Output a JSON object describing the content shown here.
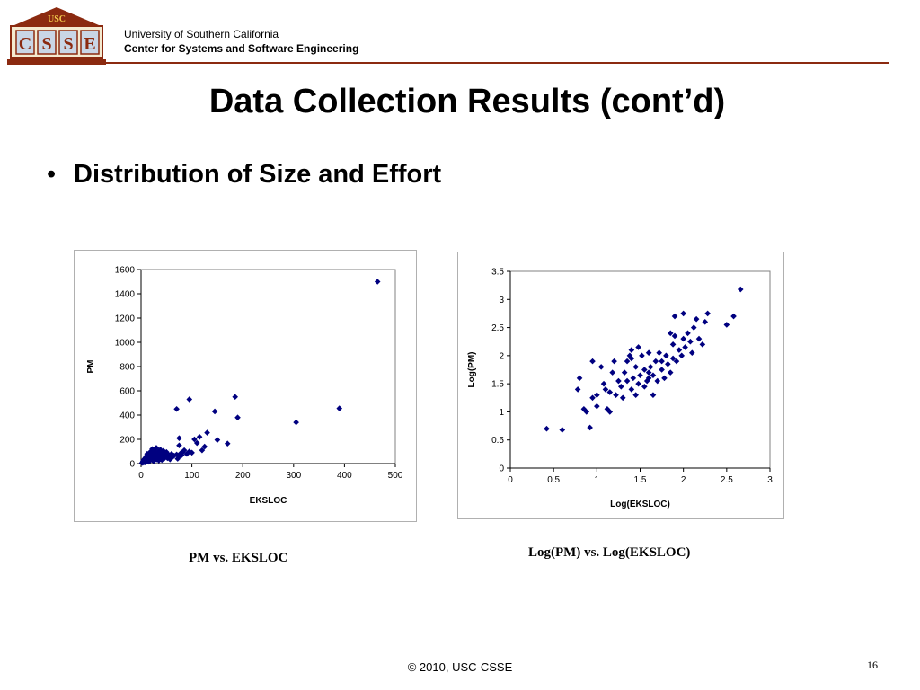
{
  "header": {
    "logo_top_text": "USC",
    "logo_letters": [
      "C",
      "S",
      "S",
      "E"
    ],
    "org_line1": "University of Southern California",
    "org_line2": "Center for Systems and Software Engineering",
    "rule_color": "#8b2a10"
  },
  "slide": {
    "title": "Data Collection Results (cont’d)",
    "bullet_marker": "•",
    "bullet_text": "Distribution of Size and Effort",
    "caption_left": "PM vs. EKSLOC",
    "caption_right": "Log(PM) vs. Log(EKSLOC)",
    "footer": "© 2010, USC-CSSE",
    "page_number": "16"
  },
  "chart_data": [
    {
      "type": "scatter",
      "title": "",
      "xlabel": "EKSLOC",
      "ylabel": "PM",
      "xlim": [
        0,
        500
      ],
      "ylim": [
        0,
        1600
      ],
      "xticks": [
        "0",
        "100",
        "200",
        "300",
        "400",
        "500"
      ],
      "yticks": [
        "0",
        "200",
        "400",
        "600",
        "800",
        "1000",
        "1200",
        "1400",
        "1600"
      ],
      "marker_color": "#000080",
      "grid": false,
      "series": [
        {
          "points": [
            [
              2,
              5
            ],
            [
              3,
              12
            ],
            [
              4,
              20
            ],
            [
              5,
              8
            ],
            [
              5,
              30
            ],
            [
              6,
              15
            ],
            [
              7,
              40
            ],
            [
              8,
              25
            ],
            [
              8,
              10
            ],
            [
              9,
              50
            ],
            [
              10,
              35
            ],
            [
              10,
              60
            ],
            [
              11,
              20
            ],
            [
              12,
              45
            ],
            [
              12,
              80
            ],
            [
              13,
              30
            ],
            [
              14,
              55
            ],
            [
              15,
              15
            ],
            [
              15,
              70
            ],
            [
              16,
              40
            ],
            [
              17,
              90
            ],
            [
              18,
              25
            ],
            [
              18,
              60
            ],
            [
              19,
              100
            ],
            [
              20,
              45
            ],
            [
              21,
              75
            ],
            [
              22,
              30
            ],
            [
              22,
              120
            ],
            [
              23,
              55
            ],
            [
              24,
              85
            ],
            [
              25,
              20
            ],
            [
              25,
              110
            ],
            [
              26,
              60
            ],
            [
              27,
              40
            ],
            [
              28,
              95
            ],
            [
              29,
              70
            ],
            [
              30,
              130
            ],
            [
              31,
              35
            ],
            [
              32,
              85
            ],
            [
              33,
              55
            ],
            [
              34,
              100
            ],
            [
              35,
              25
            ],
            [
              36,
              75
            ],
            [
              37,
              45
            ],
            [
              38,
              115
            ],
            [
              39,
              60
            ],
            [
              40,
              90
            ],
            [
              41,
              30
            ],
            [
              42,
              70
            ],
            [
              43,
              50
            ],
            [
              44,
              105
            ],
            [
              45,
              40
            ],
            [
              46,
              80
            ],
            [
              48,
              60
            ],
            [
              50,
              95
            ],
            [
              52,
              45
            ],
            [
              55,
              70
            ],
            [
              57,
              35
            ],
            [
              60,
              80
            ],
            [
              62,
              55
            ],
            [
              65,
              65
            ],
            [
              70,
              75
            ],
            [
              72,
              40
            ],
            [
              75,
              60
            ],
            [
              78,
              85
            ],
            [
              80,
              70
            ],
            [
              82,
              95
            ],
            [
              85,
              110
            ],
            [
              90,
              80
            ],
            [
              95,
              100
            ],
            [
              100,
              90
            ],
            [
              105,
              200
            ],
            [
              110,
              170
            ],
            [
              115,
              220
            ],
            [
              120,
              110
            ],
            [
              125,
              140
            ],
            [
              130,
              255
            ],
            [
              75,
              210
            ],
            [
              75,
              150
            ],
            [
              70,
              450
            ],
            [
              95,
              530
            ],
            [
              145,
              430
            ],
            [
              150,
              195
            ],
            [
              170,
              165
            ],
            [
              185,
              550
            ],
            [
              190,
              380
            ],
            [
              305,
              340
            ],
            [
              390,
              455
            ],
            [
              465,
              1500
            ]
          ]
        }
      ]
    },
    {
      "type": "scatter",
      "title": "",
      "xlabel": "Log(EKSLOC)",
      "ylabel": "Log(PM)",
      "xlim": [
        0,
        3
      ],
      "ylim": [
        0,
        3.5
      ],
      "xticks": [
        "0",
        "0.5",
        "1",
        "1.5",
        "2",
        "2.5",
        "3"
      ],
      "yticks": [
        "0",
        "0.5",
        "1",
        "1.5",
        "2",
        "2.5",
        "3",
        "3.5"
      ],
      "marker_color": "#000080",
      "grid": false,
      "series": [
        {
          "points": [
            [
              0.42,
              0.7
            ],
            [
              0.6,
              0.68
            ],
            [
              0.78,
              1.4
            ],
            [
              0.8,
              1.6
            ],
            [
              0.85,
              1.05
            ],
            [
              0.88,
              1.0
            ],
            [
              0.92,
              0.72
            ],
            [
              0.95,
              1.9
            ],
            [
              0.95,
              1.25
            ],
            [
              1.0,
              1.1
            ],
            [
              1.0,
              1.3
            ],
            [
              1.05,
              1.8
            ],
            [
              1.08,
              1.5
            ],
            [
              1.1,
              1.4
            ],
            [
              1.12,
              1.05
            ],
            [
              1.15,
              1.0
            ],
            [
              1.15,
              1.35
            ],
            [
              1.18,
              1.7
            ],
            [
              1.2,
              1.9
            ],
            [
              1.22,
              1.3
            ],
            [
              1.25,
              1.55
            ],
            [
              1.28,
              1.45
            ],
            [
              1.3,
              1.25
            ],
            [
              1.32,
              1.7
            ],
            [
              1.35,
              1.9
            ],
            [
              1.35,
              1.55
            ],
            [
              1.38,
              2.0
            ],
            [
              1.4,
              2.1
            ],
            [
              1.4,
              1.4
            ],
            [
              1.42,
              1.6
            ],
            [
              1.45,
              1.3
            ],
            [
              1.45,
              1.8
            ],
            [
              1.48,
              2.15
            ],
            [
              1.48,
              1.5
            ],
            [
              1.5,
              1.65
            ],
            [
              1.52,
              2.0
            ],
            [
              1.55,
              1.45
            ],
            [
              1.55,
              1.75
            ],
            [
              1.58,
              1.55
            ],
            [
              1.6,
              2.05
            ],
            [
              1.6,
              1.6
            ],
            [
              1.62,
              1.8
            ],
            [
              1.65,
              1.3
            ],
            [
              1.65,
              1.65
            ],
            [
              1.68,
              1.9
            ],
            [
              1.7,
              1.55
            ],
            [
              1.72,
              2.05
            ],
            [
              1.75,
              1.75
            ],
            [
              1.78,
              1.6
            ],
            [
              1.8,
              2.0
            ],
            [
              1.82,
              1.85
            ],
            [
              1.85,
              2.4
            ],
            [
              1.85,
              1.7
            ],
            [
              1.88,
              2.2
            ],
            [
              1.88,
              1.95
            ],
            [
              1.9,
              2.35
            ],
            [
              1.9,
              2.7
            ],
            [
              1.92,
              1.9
            ],
            [
              1.95,
              2.1
            ],
            [
              1.98,
              2.0
            ],
            [
              2.0,
              2.75
            ],
            [
              2.0,
              2.3
            ],
            [
              2.02,
              2.15
            ],
            [
              2.05,
              2.4
            ],
            [
              2.08,
              2.25
            ],
            [
              2.1,
              2.05
            ],
            [
              2.12,
              2.5
            ],
            [
              2.15,
              2.65
            ],
            [
              2.18,
              2.3
            ],
            [
              2.22,
              2.2
            ],
            [
              2.25,
              2.6
            ],
            [
              2.28,
              2.75
            ],
            [
              2.5,
              2.55
            ],
            [
              2.58,
              2.7
            ],
            [
              2.66,
              3.18
            ],
            [
              1.6,
              1.7
            ],
            [
              1.75,
              1.9
            ],
            [
              1.4,
              1.95
            ]
          ]
        }
      ]
    }
  ]
}
